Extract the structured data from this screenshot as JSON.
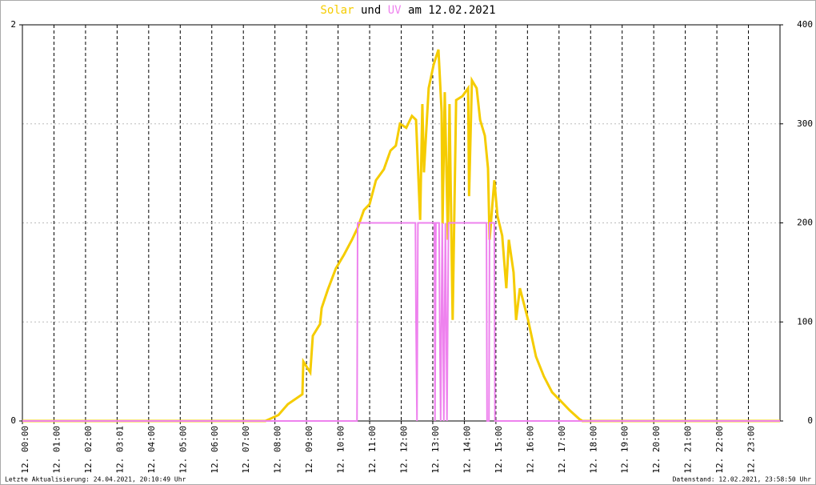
{
  "chart_data": {
    "type": "line",
    "title_connector": "und",
    "title_suffix": "am 12.02.2021",
    "footer_left": "Letzte Aktualisierung: 24.04.2021, 20:10:49 Uhr",
    "footer_right": "Datenstand: 12.02.2021, 23:58:50 Uhr",
    "xlim": [
      0,
      24
    ],
    "xticks": [
      {
        "value": 0,
        "label": "12. 00:00"
      },
      {
        "value": 1,
        "label": "12. 01:00"
      },
      {
        "value": 2,
        "label": "12. 02:00"
      },
      {
        "value": 3,
        "label": "12. 03:01"
      },
      {
        "value": 4,
        "label": "12. 04:00"
      },
      {
        "value": 5,
        "label": "12. 05:00"
      },
      {
        "value": 6,
        "label": "12. 06:00"
      },
      {
        "value": 7,
        "label": "12. 07:00"
      },
      {
        "value": 8,
        "label": "12. 08:00"
      },
      {
        "value": 9,
        "label": "12. 09:00"
      },
      {
        "value": 10,
        "label": "12. 10:00"
      },
      {
        "value": 11,
        "label": "12. 11:00"
      },
      {
        "value": 12,
        "label": "12. 12:00"
      },
      {
        "value": 13,
        "label": "12. 13:00"
      },
      {
        "value": 14,
        "label": "12. 14:00"
      },
      {
        "value": 15,
        "label": "12. 15:00"
      },
      {
        "value": 16,
        "label": "12. 16:00"
      },
      {
        "value": 17,
        "label": "12. 17:00"
      },
      {
        "value": 18,
        "label": "12. 18:00"
      },
      {
        "value": 19,
        "label": "12. 19:00"
      },
      {
        "value": 20,
        "label": "12. 20:00"
      },
      {
        "value": 21,
        "label": "12. 21:00"
      },
      {
        "value": 22,
        "label": "12. 22:00"
      },
      {
        "value": 23,
        "label": "12. 23:00"
      }
    ],
    "ylim": [
      0,
      2
    ],
    "yticks": [
      0,
      2
    ],
    "y2lim": [
      0,
      400
    ],
    "y2ticks": [
      0,
      100,
      200,
      300,
      400
    ],
    "grid": true,
    "series": [
      {
        "name": "Solar",
        "color": "#f5cc00",
        "axis": "y2",
        "x": [
          0,
          7.7,
          8.11,
          8.41,
          8.87,
          8.9,
          9.12,
          9.2,
          9.43,
          9.48,
          9.68,
          9.93,
          10.19,
          10.44,
          10.62,
          10.82,
          11.0,
          11.2,
          11.45,
          11.66,
          11.83,
          11.96,
          12.16,
          12.34,
          12.47,
          12.6,
          12.67,
          12.72,
          12.87,
          13.03,
          13.18,
          13.28,
          13.31,
          13.38,
          13.48,
          13.53,
          13.63,
          13.74,
          13.94,
          14.12,
          14.15,
          14.24,
          14.39,
          14.5,
          14.65,
          14.75,
          14.8,
          14.95,
          15.05,
          15.2,
          15.33,
          15.41,
          15.56,
          15.64,
          15.76,
          16.02,
          16.27,
          16.52,
          16.78,
          17.03,
          17.33,
          17.64,
          17.74,
          24
        ],
        "values": [
          0,
          0,
          6,
          17,
          27,
          60,
          49,
          86,
          98,
          114,
          133,
          154,
          168,
          183,
          195,
          213,
          219,
          243,
          254,
          273,
          278,
          300,
          296,
          308,
          304,
          203,
          320,
          251,
          336,
          360,
          375,
          312,
          199,
          332,
          183,
          320,
          102,
          324,
          328,
          336,
          227,
          344,
          336,
          304,
          288,
          255,
          183,
          243,
          207,
          187,
          134,
          183,
          150,
          102,
          134,
          102,
          65,
          45,
          29,
          21,
          11,
          2,
          0,
          0
        ]
      },
      {
        "name": "UV",
        "color": "#ee82ee",
        "x": [
          0,
          10.6,
          10.62,
          12.45,
          12.47,
          12.5,
          12.53,
          13.05,
          13.07,
          13.1,
          13.2,
          13.22,
          13.25,
          13.3,
          13.35,
          13.4,
          13.45,
          13.5,
          14.7,
          14.72,
          14.78,
          14.8,
          14.95,
          14.97,
          24
        ],
        "values": [
          0,
          0,
          1,
          1,
          0.5,
          0,
          1,
          1,
          0,
          1,
          1,
          0.5,
          0,
          1,
          0,
          1,
          0,
          1,
          1,
          0,
          0,
          1,
          1,
          0,
          0
        ]
      }
    ]
  }
}
